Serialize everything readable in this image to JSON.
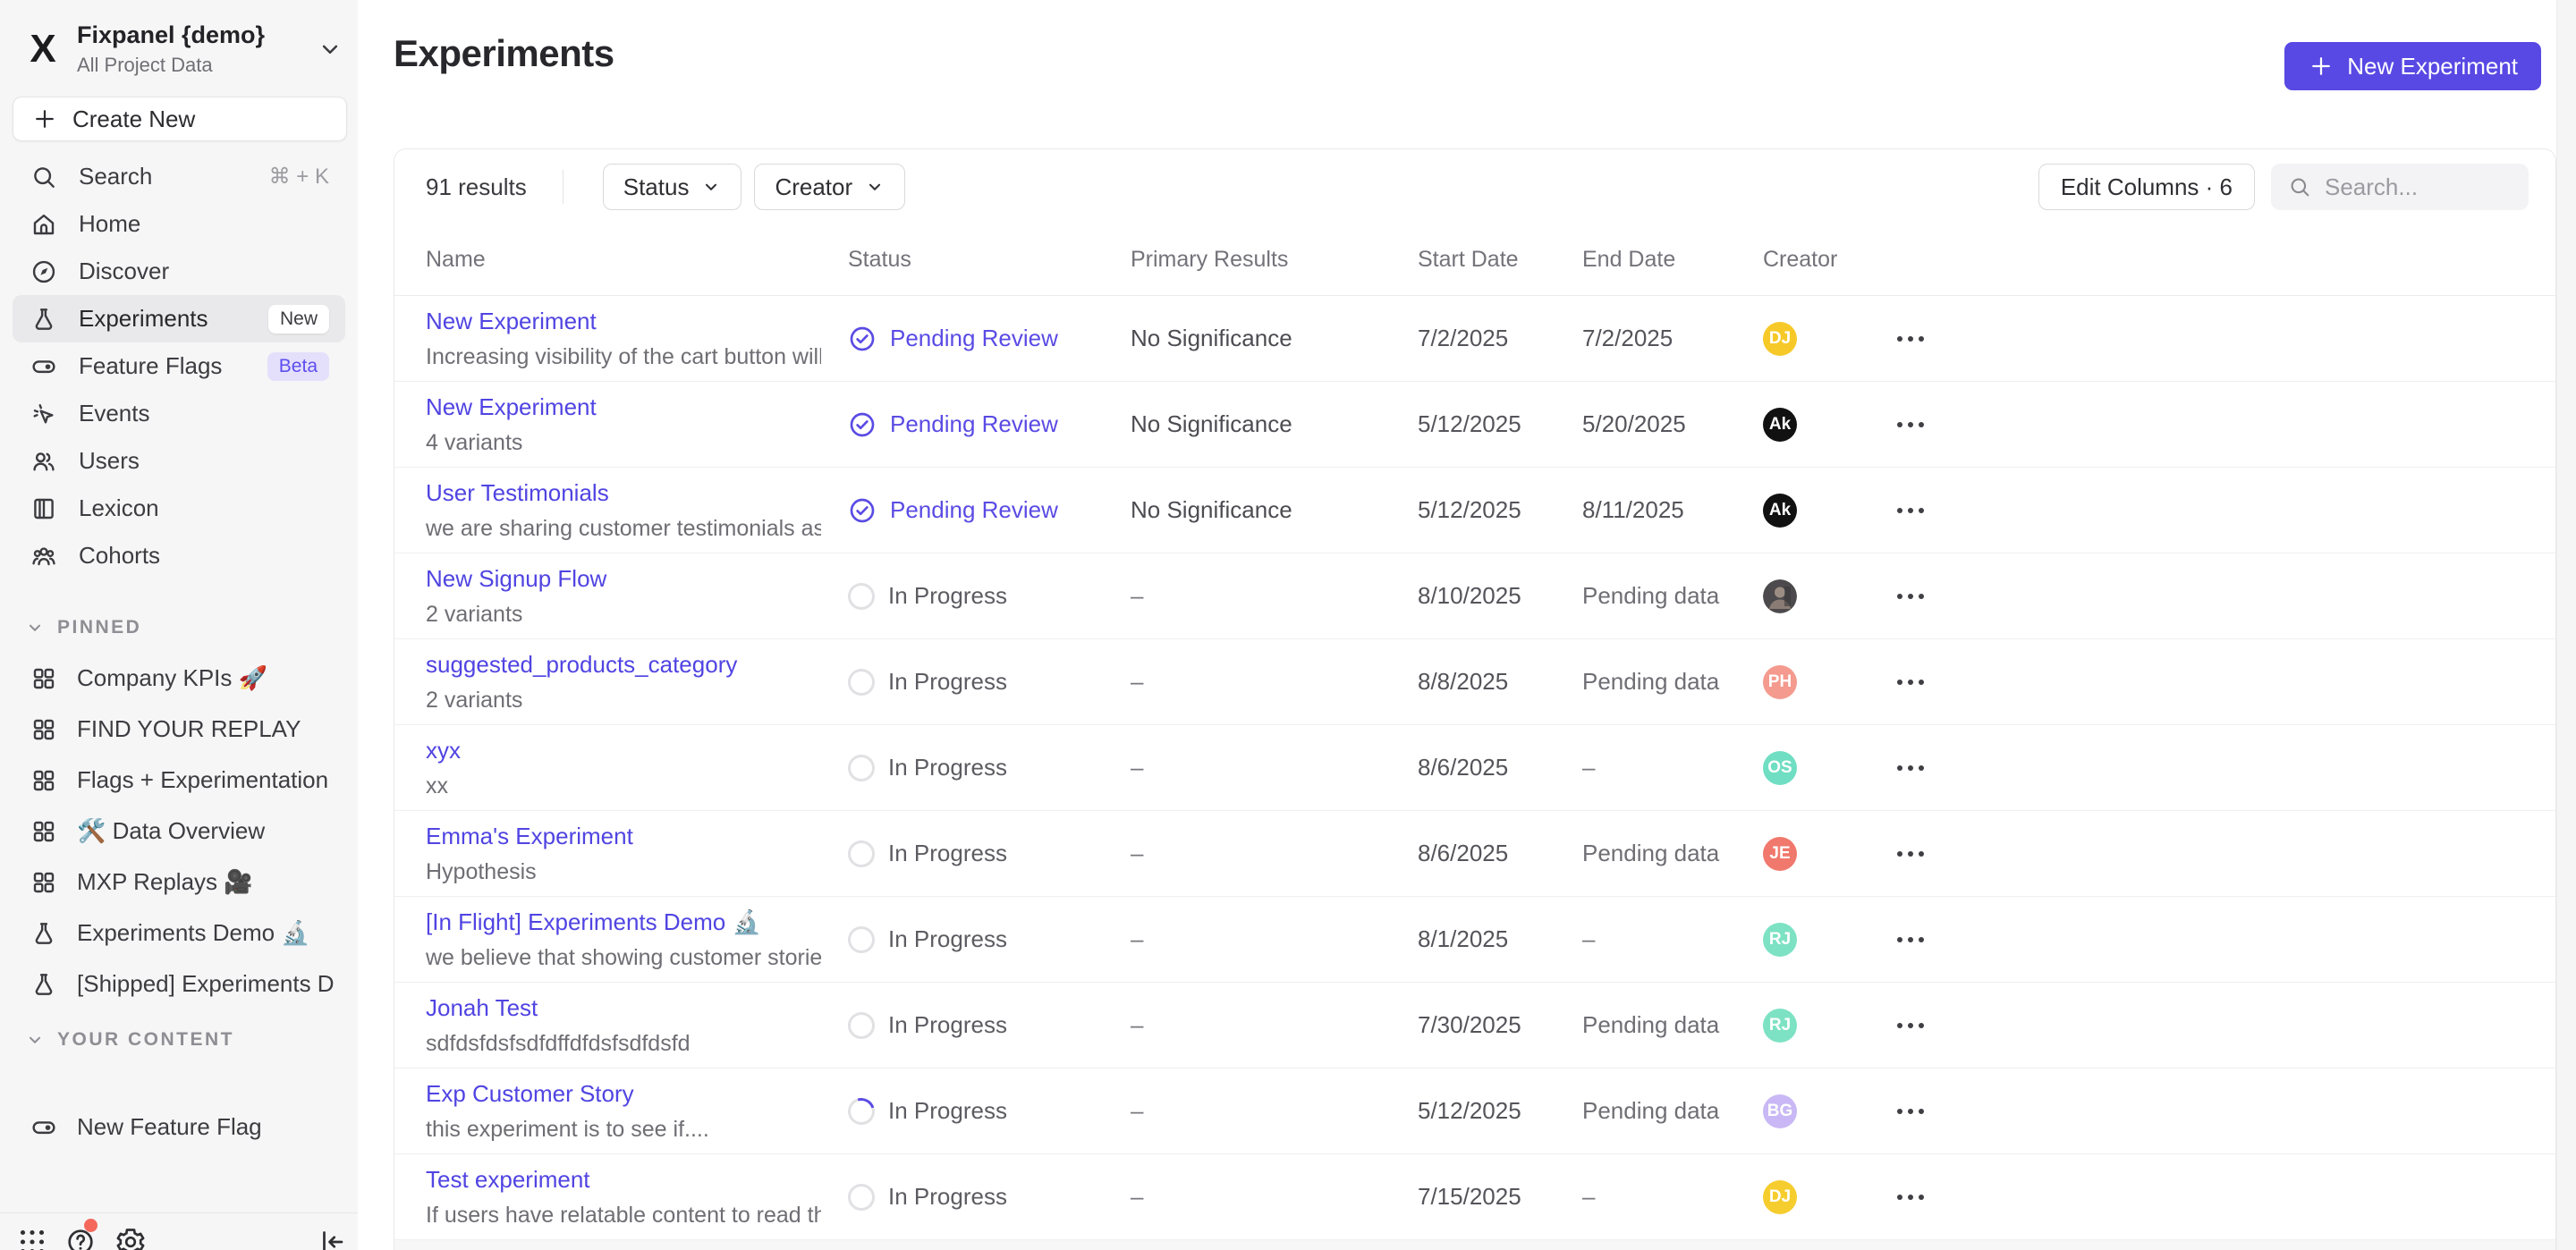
{
  "sidebar": {
    "project": {
      "name": "Fixpanel {demo}",
      "subtitle": "All Project Data"
    },
    "create_new_label": "Create New",
    "nav": [
      {
        "icon": "search-icon",
        "label": "Search",
        "shortcut": "⌘ + K"
      },
      {
        "icon": "home-icon",
        "label": "Home"
      },
      {
        "icon": "discover-icon",
        "label": "Discover"
      },
      {
        "icon": "flask-icon",
        "label": "Experiments",
        "badge": "New",
        "active": true
      },
      {
        "icon": "toggle-icon",
        "label": "Feature Flags",
        "badge": "Beta"
      },
      {
        "icon": "events-icon",
        "label": "Events"
      },
      {
        "icon": "users-icon",
        "label": "Users"
      },
      {
        "icon": "lexicon-icon",
        "label": "Lexicon"
      },
      {
        "icon": "cohorts-icon",
        "label": "Cohorts"
      }
    ],
    "sections": [
      {
        "title": "PINNED",
        "items": [
          {
            "icon": "board-icon",
            "label": "Company KPIs 🚀"
          },
          {
            "icon": "board-icon",
            "label": "FIND YOUR REPLAY"
          },
          {
            "icon": "board-icon",
            "label": "Flags + Experimentation Demo ,"
          },
          {
            "icon": "board-icon",
            "label": "🛠️ Data Overview"
          },
          {
            "icon": "board-icon",
            "label": "MXP Replays 🎥"
          },
          {
            "icon": "flask-icon",
            "label": "Experiments Demo 🔬"
          },
          {
            "icon": "flask-icon",
            "label": "[Shipped] Experiments Demo 🖊️"
          }
        ]
      },
      {
        "title": "YOUR CONTENT",
        "items": [
          {
            "icon": "toggle-icon",
            "label": "New Feature Flag"
          }
        ]
      }
    ],
    "footer_icons": [
      "apps-grid-icon",
      "help-icon",
      "gear-icon",
      "collapse-sidebar-icon"
    ]
  },
  "header": {
    "title": "Experiments",
    "new_experiment_label": "New Experiment"
  },
  "toolbar": {
    "results_count": "91 results",
    "filters": [
      {
        "label": "Status"
      },
      {
        "label": "Creator"
      }
    ],
    "edit_columns_label": "Edit Columns · 6",
    "search_placeholder": "Search..."
  },
  "table": {
    "columns": [
      "Name",
      "Status",
      "Primary Results",
      "Start Date",
      "End Date",
      "Creator"
    ],
    "rows": [
      {
        "name": "New Experiment",
        "desc": "Increasing visibility of the cart button will l...",
        "status": "Pending Review",
        "status_icon": "check",
        "results": "No Significance",
        "start": "7/2/2025",
        "end": "7/2/2025",
        "avatar": {
          "type": "initials",
          "text": "DJ",
          "bg": "#f7c928"
        }
      },
      {
        "name": "New Experiment",
        "desc": "4 variants",
        "status": "Pending Review",
        "status_icon": "check",
        "results": "No Significance",
        "start": "5/12/2025",
        "end": "5/20/2025",
        "avatar": {
          "type": "logo",
          "text": "Ak",
          "bg": "#111111"
        }
      },
      {
        "name": "User Testimonials",
        "desc": "we are sharing customer testimonials as in...",
        "status": "Pending Review",
        "status_icon": "check",
        "results": "No Significance",
        "start": "5/12/2025",
        "end": "8/11/2025",
        "avatar": {
          "type": "logo",
          "text": "Ak",
          "bg": "#111111"
        }
      },
      {
        "name": "New Signup Flow",
        "desc": "2 variants",
        "status": "In Progress",
        "status_icon": "ring",
        "results": "–",
        "start": "8/10/2025",
        "end": "Pending data",
        "avatar": {
          "type": "photo",
          "text": "",
          "bg": "#4a4a4e"
        }
      },
      {
        "name": "suggested_products_category",
        "desc": "2 variants",
        "status": "In Progress",
        "status_icon": "ring",
        "results": "–",
        "start": "8/8/2025",
        "end": "Pending data",
        "avatar": {
          "type": "initials",
          "text": "PH",
          "bg": "#f49a8e"
        }
      },
      {
        "name": "xyx",
        "desc": "xx",
        "status": "In Progress",
        "status_icon": "ring",
        "results": "–",
        "start": "8/6/2025",
        "end": "–",
        "avatar": {
          "type": "initials",
          "text": "OS",
          "bg": "#6fdec2"
        }
      },
      {
        "name": "Emma's Experiment",
        "desc": "Hypothesis",
        "status": "In Progress",
        "status_icon": "ring",
        "results": "–",
        "start": "8/6/2025",
        "end": "Pending data",
        "avatar": {
          "type": "initials",
          "text": "JE",
          "bg": "#f0786c"
        }
      },
      {
        "name": "[In Flight] Experiments Demo 🔬",
        "desc": "we believe that showing customer stories ...",
        "status": "In Progress",
        "status_icon": "ring",
        "results": "–",
        "start": "8/1/2025",
        "end": "–",
        "avatar": {
          "type": "initials",
          "text": "RJ",
          "bg": "#7de2c3"
        }
      },
      {
        "name": "Jonah Test",
        "desc": "sdfdsfdsfsdfdffdfdsfsdfdsfd",
        "status": "In Progress",
        "status_icon": "ring",
        "results": "–",
        "start": "7/30/2025",
        "end": "Pending data",
        "avatar": {
          "type": "initials",
          "text": "RJ",
          "bg": "#7de2c3"
        }
      },
      {
        "name": "Exp Customer Story",
        "desc": "this experiment is to see if....",
        "status": "In Progress",
        "status_icon": "spinner",
        "results": "–",
        "start": "5/12/2025",
        "end": "Pending data",
        "avatar": {
          "type": "initials",
          "text": "BG",
          "bg": "#c9b8f5"
        }
      },
      {
        "name": "Test experiment",
        "desc": "If users have relatable content to read they...",
        "status": "In Progress",
        "status_icon": "ring",
        "results": "–",
        "start": "7/15/2025",
        "end": "–",
        "avatar": {
          "type": "initials",
          "text": "DJ",
          "bg": "#f6cd2e"
        }
      }
    ]
  },
  "colors": {
    "accent": "#5849e4",
    "link": "#5044e2",
    "status_review": "#5a4be4",
    "sidebar_bg": "#f6f6f6"
  }
}
